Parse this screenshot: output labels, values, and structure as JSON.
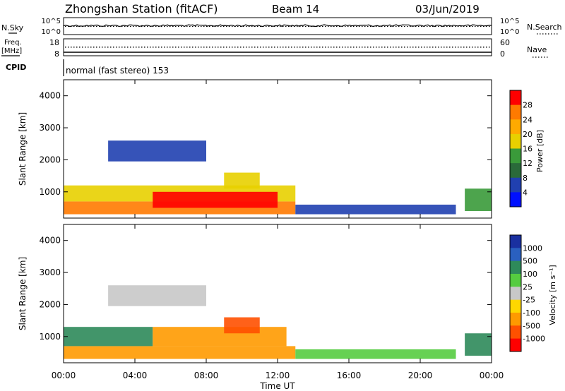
{
  "header": {
    "station_title": "Zhongshan Station (fitACF)",
    "beam_label": "Beam 14",
    "date_label": "03/Jun/2019"
  },
  "strip_noise": {
    "left_label": "N.Sky",
    "left_ticks": [
      "10^5",
      "10^0"
    ],
    "right_label": "N.Search",
    "right_ticks": [
      "10^5",
      "10^0"
    ]
  },
  "strip_freq": {
    "left_label_line1": "Freq.",
    "left_label_line2": "[MHz]",
    "left_ticks": [
      "18",
      "8"
    ],
    "right_label": "Nave",
    "right_ticks": [
      "60",
      "0"
    ]
  },
  "cpid": {
    "label": "CPID",
    "mode_text": "normal (fast stereo) 153"
  },
  "x_axis": {
    "label": "Time UT",
    "ticks": [
      "00:00",
      "04:00",
      "08:00",
      "12:00",
      "16:00",
      "20:00",
      "00:00"
    ]
  },
  "chart_data": [
    {
      "type": "heatmap",
      "panel": "power",
      "ylabel": "Slant Range [km]",
      "yticks": [
        "1000",
        "2000",
        "3000",
        "4000"
      ],
      "ylim": [
        180,
        4500
      ],
      "xlim_hours": [
        0,
        24
      ],
      "colorbar_label": "Power [dB]",
      "colorbar_ticks": [
        "28",
        "24",
        "20",
        "16",
        "12",
        "8",
        "4"
      ],
      "colorbar_colors": [
        "#ff0000",
        "#ff7a00",
        "#ffaa00",
        "#e8d000",
        "#3a9a3a",
        "#2a6a3a",
        "#2040b0",
        "#0010ff"
      ],
      "regions": [
        {
          "t0": 0.0,
          "t1": 13.0,
          "r0": 300,
          "r1": 700,
          "value": 26
        },
        {
          "t0": 0.0,
          "t1": 13.0,
          "r0": 700,
          "r1": 1200,
          "value": 18
        },
        {
          "t0": 5.0,
          "t1": 12.0,
          "r0": 500,
          "r1": 1000,
          "value": 30
        },
        {
          "t0": 2.5,
          "t1": 8.0,
          "r0": 1950,
          "r1": 2600,
          "value": 6
        },
        {
          "t0": 9.0,
          "t1": 11.0,
          "r0": 1100,
          "r1": 1600,
          "value": 20
        },
        {
          "t0": 13.0,
          "t1": 22.0,
          "r0": 300,
          "r1": 600,
          "value": 8
        },
        {
          "t0": 22.5,
          "t1": 24.0,
          "r0": 400,
          "r1": 1100,
          "value": 14
        }
      ]
    },
    {
      "type": "heatmap",
      "panel": "velocity",
      "ylabel": "Slant Range [km]",
      "yticks": [
        "1000",
        "2000",
        "3000",
        "4000"
      ],
      "ylim": [
        180,
        4500
      ],
      "xlim_hours": [
        0,
        24
      ],
      "colorbar_label": "Velocity [m s⁻¹]",
      "colorbar_ticks": [
        "1000",
        "500",
        "100",
        "25",
        "-25",
        "-100",
        "-500",
        "-1000"
      ],
      "colorbar_colors": [
        "#1a30a0",
        "#2a60c0",
        "#2e8a5a",
        "#55cc40",
        "#c8c8c8",
        "#ffd700",
        "#ff9a00",
        "#ff5000",
        "#ff0000"
      ],
      "regions": [
        {
          "t0": 0.0,
          "t1": 13.0,
          "r0": 300,
          "r1": 700,
          "value": -300
        },
        {
          "t0": 0.0,
          "t1": 5.0,
          "r0": 700,
          "r1": 1300,
          "value": 300
        },
        {
          "t0": 5.0,
          "t1": 12.5,
          "r0": 700,
          "r1": 1300,
          "value": -150
        },
        {
          "t0": 2.5,
          "t1": 8.0,
          "r0": 1950,
          "r1": 2600,
          "value": 0
        },
        {
          "t0": 9.0,
          "t1": 11.0,
          "r0": 1100,
          "r1": 1600,
          "value": -800
        },
        {
          "t0": 13.0,
          "t1": 22.0,
          "r0": 300,
          "r1": 600,
          "value": 50
        },
        {
          "t0": 22.5,
          "t1": 24.0,
          "r0": 400,
          "r1": 1100,
          "value": 150
        }
      ]
    }
  ]
}
